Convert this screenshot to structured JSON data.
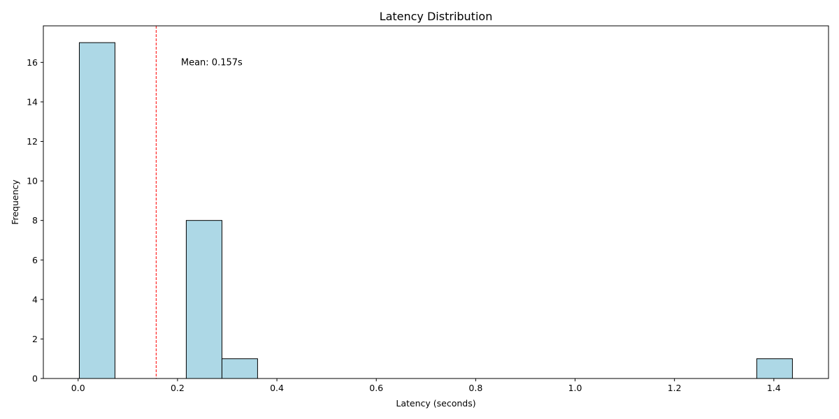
{
  "chart_data": {
    "type": "bar",
    "title": "Latency Distribution",
    "xlabel": "Latency (seconds)",
    "ylabel": "Frequency",
    "xlim": [
      -0.07,
      1.51
    ],
    "ylim": [
      0,
      17.85
    ],
    "xticks": [
      0.0,
      0.2,
      0.4,
      0.6,
      0.8,
      1.0,
      1.2,
      1.4
    ],
    "xtick_labels": [
      "0.0",
      "0.2",
      "0.4",
      "0.6",
      "0.8",
      "1.0",
      "1.2",
      "1.4"
    ],
    "yticks": [
      0,
      2,
      4,
      6,
      8,
      10,
      12,
      14,
      16
    ],
    "ytick_labels": [
      "0",
      "2",
      "4",
      "6",
      "8",
      "10",
      "12",
      "14",
      "16"
    ],
    "bin_edges": [
      0.0024,
      0.0741,
      0.1459,
      0.2176,
      0.2894,
      0.3611,
      0.4329,
      0.5046,
      0.5764,
      0.6481,
      0.7199,
      0.7916,
      0.8634,
      0.9351,
      1.0069,
      1.0786,
      1.1504,
      1.2221,
      1.2939,
      1.3656,
      1.4374
    ],
    "counts": [
      17,
      0,
      0,
      8,
      1,
      0,
      0,
      0,
      0,
      0,
      0,
      0,
      0,
      0,
      0,
      0,
      0,
      0,
      0,
      1
    ],
    "bar_color": "#add8e6",
    "edge_color": "#000000",
    "mean_value": 0.157,
    "mean_line_color": "#ff0000",
    "annotation": "Mean: 0.157s",
    "annotation_x": 0.207,
    "annotation_y": 16.0,
    "grid": false,
    "legend": "none"
  }
}
